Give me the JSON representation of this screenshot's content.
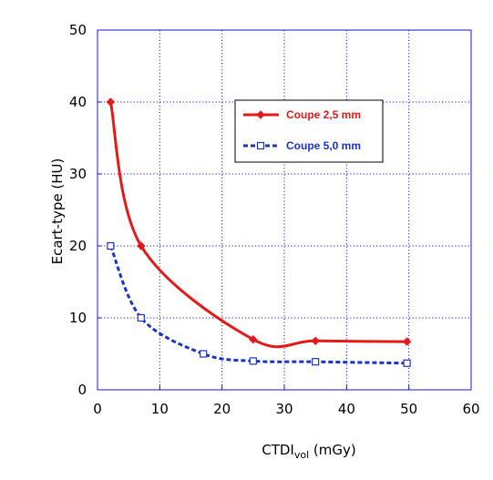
{
  "chart_data": {
    "type": "line",
    "title": "",
    "xlabel": {
      "main": "CTDI",
      "sub": "vol",
      "unit": " (mGy)"
    },
    "ylabel": "Ecart-type (HU)",
    "xlim": [
      0,
      60
    ],
    "ylim": [
      0,
      50
    ],
    "xticks": [
      "0",
      "10",
      "20",
      "30",
      "40",
      "50",
      "60"
    ],
    "yticks": [
      "0",
      "10",
      "20",
      "30",
      "40",
      "50"
    ],
    "grid": true,
    "legend_position": "top-right",
    "series": [
      {
        "name": "Coupe 2,5 mm",
        "color": "#e41a1a",
        "line_style": "solid",
        "marker": "filled-diamond",
        "points": [
          {
            "x": 2.1,
            "y": 40
          },
          {
            "x": 7.0,
            "y": 20
          },
          {
            "x": 25.0,
            "y": 7
          },
          {
            "x": 35.0,
            "y": 6.8
          },
          {
            "x": 49.7,
            "y": 6.7
          }
        ]
      },
      {
        "name": "Coupe 5,0 mm",
        "color": "#1a34c8",
        "line_style": "dashed",
        "marker": "open-square",
        "points": [
          {
            "x": 2.1,
            "y": 20
          },
          {
            "x": 7.0,
            "y": 10
          },
          {
            "x": 17.0,
            "y": 5
          },
          {
            "x": 25.0,
            "y": 4
          },
          {
            "x": 35.0,
            "y": 3.9
          },
          {
            "x": 49.7,
            "y": 3.7
          }
        ]
      }
    ]
  }
}
